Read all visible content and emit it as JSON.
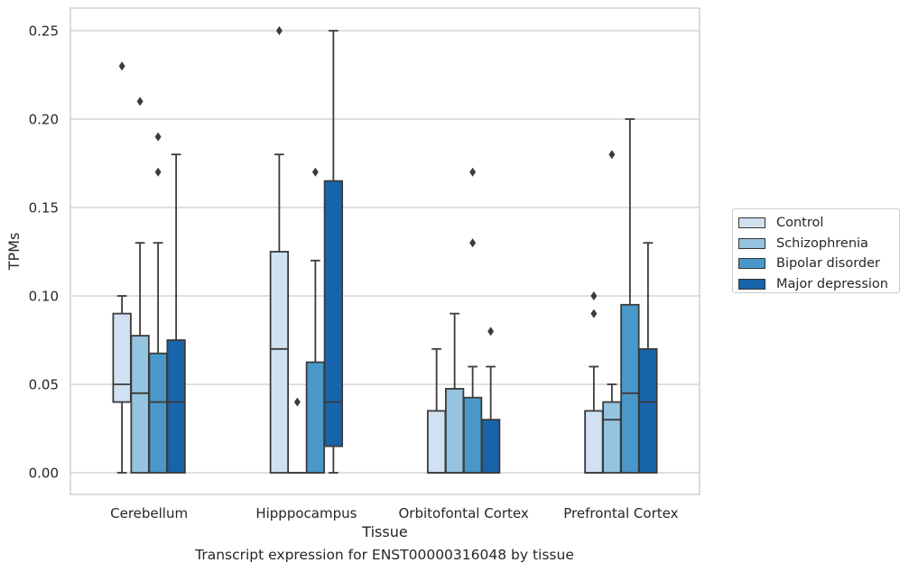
{
  "caption": "Transcript expression for ENST00000316048 by tissue",
  "chart_data": {
    "type": "box",
    "xlabel": "Tissue",
    "ylabel": "TPMs",
    "ylim": [
      -0.012,
      0.263
    ],
    "yticks": [
      "0.00",
      "0.05",
      "0.10",
      "0.15",
      "0.20",
      "0.25"
    ],
    "grid": "horizontal",
    "legend_position": "right",
    "categories": [
      "Cerebellum",
      "Hipppocampus",
      "Orbitofontal Cortex",
      "Prefrontal Cortex"
    ],
    "series": [
      {
        "name": "Control",
        "color": "#d0e1f2",
        "boxes": [
          {
            "whislo": 0.0,
            "q1": 0.04,
            "med": 0.05,
            "q3": 0.09,
            "whishi": 0.1,
            "fliers": [
              0.23
            ]
          },
          {
            "whislo": 0.0,
            "q1": 0.0,
            "med": 0.07,
            "q3": 0.125,
            "whishi": 0.18,
            "fliers": [
              0.25
            ]
          },
          {
            "whislo": 0.0,
            "q1": 0.0,
            "med": 0.0,
            "q3": 0.035,
            "whishi": 0.07,
            "fliers": []
          },
          {
            "whislo": 0.0,
            "q1": 0.0,
            "med": 0.0,
            "q3": 0.035,
            "whishi": 0.06,
            "fliers": [
              0.09,
              0.1
            ]
          }
        ]
      },
      {
        "name": "Schizophrenia",
        "color": "#94c4df",
        "boxes": [
          {
            "whislo": 0.0,
            "q1": 0.0,
            "med": 0.045,
            "q3": 0.0775,
            "whishi": 0.13,
            "fliers": [
              0.21
            ]
          },
          {
            "whislo": 0.0,
            "q1": 0.0,
            "med": 0.0,
            "q3": 0.0,
            "whishi": 0.0,
            "fliers": [
              0.04
            ]
          },
          {
            "whislo": 0.0,
            "q1": 0.0,
            "med": 0.0,
            "q3": 0.0475,
            "whishi": 0.09,
            "fliers": []
          },
          {
            "whislo": 0.0,
            "q1": 0.0,
            "med": 0.03,
            "q3": 0.04,
            "whishi": 0.05,
            "fliers": [
              0.18
            ]
          }
        ]
      },
      {
        "name": "Bipolar disorder",
        "color": "#4a98c9",
        "boxes": [
          {
            "whislo": 0.0,
            "q1": 0.0,
            "med": 0.04,
            "q3": 0.0675,
            "whishi": 0.13,
            "fliers": [
              0.17,
              0.19
            ]
          },
          {
            "whislo": 0.0,
            "q1": 0.0,
            "med": 0.0,
            "q3": 0.0625,
            "whishi": 0.12,
            "fliers": [
              0.17
            ]
          },
          {
            "whislo": 0.0,
            "q1": 0.0,
            "med": 0.0,
            "q3": 0.0425,
            "whishi": 0.06,
            "fliers": [
              0.13,
              0.17
            ]
          },
          {
            "whislo": 0.0,
            "q1": 0.0,
            "med": 0.045,
            "q3": 0.095,
            "whishi": 0.2,
            "fliers": []
          }
        ]
      },
      {
        "name": "Major depression",
        "color": "#1764ab",
        "boxes": [
          {
            "whislo": 0.0,
            "q1": 0.0,
            "med": 0.04,
            "q3": 0.075,
            "whishi": 0.18,
            "fliers": []
          },
          {
            "whislo": 0.0,
            "q1": 0.015,
            "med": 0.04,
            "q3": 0.165,
            "whishi": 0.25,
            "fliers": []
          },
          {
            "whislo": 0.0,
            "q1": 0.0,
            "med": 0.0,
            "q3": 0.03,
            "whishi": 0.06,
            "fliers": [
              0.08
            ]
          },
          {
            "whislo": 0.0,
            "q1": 0.0,
            "med": 0.04,
            "q3": 0.07,
            "whishi": 0.13,
            "fliers": []
          }
        ]
      }
    ]
  }
}
